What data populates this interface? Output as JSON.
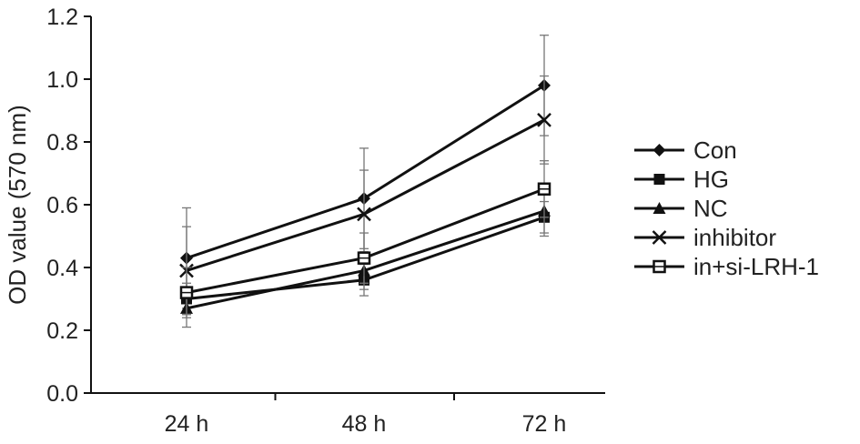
{
  "chart_data": {
    "type": "line",
    "title": "",
    "xlabel": "",
    "ylabel": "OD value (570 nm)",
    "categories": [
      "24 h",
      "48 h",
      "72 h"
    ],
    "ylim": [
      0,
      1.2
    ],
    "yticks": [
      "0.0",
      "0.2",
      "0.4",
      "0.6",
      "0.8",
      "1.0",
      "1.2"
    ],
    "grid": false,
    "legend_position": "right",
    "error_bars": true,
    "series": [
      {
        "name": "Con",
        "marker": "diamond",
        "values": [
          0.43,
          0.62,
          0.98
        ],
        "errors": [
          0.16,
          0.16,
          0.16
        ],
        "color": "#111111"
      },
      {
        "name": "HG",
        "marker": "square",
        "values": [
          0.3,
          0.36,
          0.56
        ],
        "errors": [
          0.05,
          0.05,
          0.05
        ],
        "color": "#111111"
      },
      {
        "name": "NC",
        "marker": "triangle",
        "values": [
          0.27,
          0.39,
          0.58
        ],
        "errors": [
          0.06,
          0.06,
          0.08
        ],
        "color": "#111111"
      },
      {
        "name": "inhibitor",
        "marker": "x",
        "values": [
          0.39,
          0.57,
          0.87
        ],
        "errors": [
          0.14,
          0.14,
          0.14
        ],
        "color": "#111111"
      },
      {
        "name": "in+si-LRH-1",
        "marker": "square-open",
        "values": [
          0.32,
          0.43,
          0.65
        ],
        "errors": [
          0.08,
          0.08,
          0.09
        ],
        "color": "#111111"
      }
    ]
  }
}
